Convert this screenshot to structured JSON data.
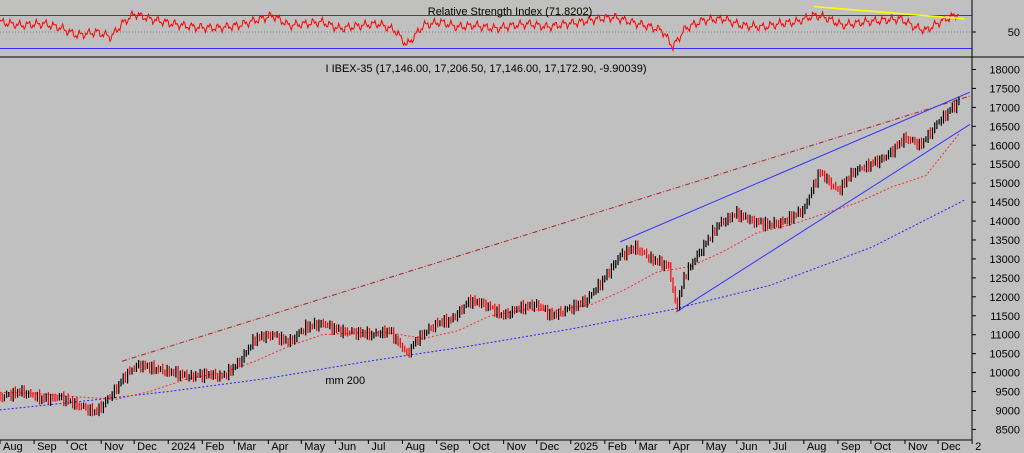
{
  "colors": {
    "background": "#c0c0c0",
    "price_up": "#000000",
    "price_down": "#ff0000",
    "ma_short": "#ff2a2a",
    "ma_200": "#2020ff",
    "trendline": "#3030ff",
    "channel_upper": "#b02020",
    "rsi_line": "#ff0000",
    "rsi_level": "#3030ff",
    "rsi_divergence": "#ffff00"
  },
  "chart_data": [
    {
      "type": "line",
      "title": "Relative Strength Index (71.8202)",
      "ylabel": "",
      "ytick_labels": [
        "50"
      ],
      "levels": [
        70,
        30
      ],
      "series": [
        {
          "name": "Relative Strength Index",
          "x": [
            "2023-08-01",
            "2023-08-20",
            "2023-09-10",
            "2023-09-25",
            "2023-10-10",
            "2023-10-28",
            "2023-11-10",
            "2023-11-20",
            "2023-12-01",
            "2023-12-15",
            "2024-01-05",
            "2024-01-25",
            "2024-02-15",
            "2024-03-05",
            "2024-03-20",
            "2024-04-05",
            "2024-04-20",
            "2024-05-05",
            "2024-05-20",
            "2024-06-05",
            "2024-06-25",
            "2024-07-10",
            "2024-07-25",
            "2024-08-05",
            "2024-08-20",
            "2024-09-05",
            "2024-09-20",
            "2024-10-05",
            "2024-10-25",
            "2024-11-10",
            "2024-11-25",
            "2024-12-10",
            "2024-12-28",
            "2025-01-10",
            "2025-01-25",
            "2025-02-10",
            "2025-02-25",
            "2025-03-10",
            "2025-03-25",
            "2025-04-04",
            "2025-04-15",
            "2025-05-01",
            "2025-05-20",
            "2025-06-05",
            "2025-06-25",
            "2025-07-10",
            "2025-07-25",
            "2025-08-10",
            "2025-08-20",
            "2025-09-05",
            "2025-09-25",
            "2025-10-10",
            "2025-10-28",
            "2025-11-10",
            "2025-11-20",
            "2025-12-05",
            "2025-12-20"
          ],
          "values": [
            62,
            58,
            60,
            55,
            46,
            50,
            44,
            60,
            72,
            66,
            60,
            56,
            55,
            58,
            64,
            70,
            58,
            60,
            62,
            54,
            58,
            60,
            52,
            34,
            58,
            62,
            56,
            58,
            54,
            58,
            60,
            56,
            60,
            62,
            66,
            68,
            62,
            58,
            52,
            32,
            54,
            64,
            66,
            58,
            56,
            60,
            62,
            70,
            68,
            58,
            62,
            64,
            66,
            56,
            52,
            64,
            72
          ]
        },
        {
          "name": "RSI divergence",
          "x": [
            "2025-08-10",
            "2025-12-25"
          ],
          "values": [
            71,
            66
          ]
        }
      ]
    },
    {
      "type": "line",
      "title": "I IBEX-35 (17,146.00, 17,206.50, 17,146.00, 17,172.90, -9.90039)",
      "xlabel": "",
      "ylabel": "",
      "ylim": [
        8300,
        18200
      ],
      "yticks": [
        8500,
        9000,
        9500,
        10000,
        10500,
        11000,
        11500,
        12000,
        12500,
        13000,
        13500,
        14000,
        14500,
        15000,
        15500,
        16000,
        16500,
        17000,
        17500,
        18000
      ],
      "xtick_labels": [
        "Aug",
        "Sep",
        "Oct",
        "Nov",
        "Dec",
        "2024",
        "Feb",
        "Mar",
        "Apr",
        "May",
        "Jun",
        "Jul",
        "Aug",
        "Sep",
        "Oct",
        "Nov",
        "Dec",
        "2025",
        "Feb",
        "Mar",
        "Apr",
        "May",
        "Jun",
        "Jul",
        "Aug",
        "Sep",
        "Oct",
        "Nov",
        "Dec",
        "2"
      ],
      "xtick_dates": [
        "2023-08-01",
        "2023-09-01",
        "2023-10-01",
        "2023-11-01",
        "2023-12-01",
        "2024-01-01",
        "2024-02-01",
        "2024-03-01",
        "2024-04-01",
        "2024-05-01",
        "2024-06-01",
        "2024-07-01",
        "2024-08-01",
        "2024-09-01",
        "2024-10-01",
        "2024-11-01",
        "2024-12-01",
        "2025-01-01",
        "2025-02-01",
        "2025-03-01",
        "2025-04-01",
        "2025-05-01",
        "2025-06-01",
        "2025-07-01",
        "2025-08-01",
        "2025-09-01",
        "2025-10-01",
        "2025-11-01",
        "2025-12-01",
        "2026-01-01"
      ],
      "annotations": [
        {
          "text": "mm 200",
          "x": "2024-06-01",
          "y": 9700
        }
      ],
      "series": [
        {
          "name": "IBEX-35",
          "x": [
            "2023-07-10",
            "2023-08-01",
            "2023-08-20",
            "2023-09-10",
            "2023-09-25",
            "2023-10-10",
            "2023-10-27",
            "2023-11-10",
            "2023-11-25",
            "2023-12-05",
            "2023-12-20",
            "2024-01-05",
            "2024-01-20",
            "2024-02-05",
            "2024-02-20",
            "2024-03-05",
            "2024-03-20",
            "2024-04-05",
            "2024-04-20",
            "2024-05-05",
            "2024-05-20",
            "2024-06-05",
            "2024-06-20",
            "2024-07-05",
            "2024-07-20",
            "2024-08-05",
            "2024-08-15",
            "2024-09-01",
            "2024-09-15",
            "2024-10-01",
            "2024-10-15",
            "2024-11-01",
            "2024-11-15",
            "2024-12-01",
            "2024-12-15",
            "2025-01-01",
            "2025-01-15",
            "2025-02-01",
            "2025-02-15",
            "2025-03-01",
            "2025-03-15",
            "2025-03-31",
            "2025-04-07",
            "2025-04-15",
            "2025-05-01",
            "2025-05-15",
            "2025-06-01",
            "2025-06-15",
            "2025-07-01",
            "2025-07-15",
            "2025-08-01",
            "2025-08-15",
            "2025-09-01",
            "2025-09-15",
            "2025-10-01",
            "2025-10-15",
            "2025-11-01",
            "2025-11-15",
            "2025-12-01",
            "2025-12-20"
          ],
          "values": [
            9400,
            9350,
            9500,
            9300,
            9350,
            9150,
            8950,
            9400,
            10000,
            10200,
            10100,
            10000,
            9900,
            9950,
            9900,
            10250,
            10900,
            11000,
            10800,
            11200,
            11300,
            11100,
            11050,
            11000,
            11100,
            10500,
            10900,
            11300,
            11400,
            11900,
            11800,
            11500,
            11700,
            11800,
            11500,
            11700,
            11900,
            12500,
            13100,
            13300,
            13000,
            12800,
            11700,
            12600,
            13300,
            13900,
            14200,
            14000,
            13900,
            14000,
            14300,
            15300,
            14800,
            15300,
            15500,
            15700,
            16200,
            16000,
            16600,
            17170
          ]
        },
        {
          "name": "moving average (short)",
          "x": [
            "2023-07-10",
            "2023-09-01",
            "2023-10-15",
            "2023-11-15",
            "2023-12-15",
            "2024-01-20",
            "2024-02-20",
            "2024-03-20",
            "2024-04-20",
            "2024-05-20",
            "2024-06-20",
            "2024-07-20",
            "2024-08-20",
            "2024-09-20",
            "2024-10-20",
            "2024-11-20",
            "2024-12-20",
            "2025-01-20",
            "2025-02-20",
            "2025-03-20",
            "2025-04-20",
            "2025-05-20",
            "2025-06-20",
            "2025-07-20",
            "2025-08-20",
            "2025-09-20",
            "2025-10-20",
            "2025-11-20",
            "2025-12-20"
          ],
          "values": [
            9500,
            9450,
            9350,
            9300,
            9500,
            9850,
            10000,
            10300,
            10700,
            11000,
            11050,
            11050,
            10900,
            11100,
            11500,
            11650,
            11650,
            11800,
            12200,
            12650,
            12800,
            13200,
            13700,
            13900,
            14200,
            14500,
            14900,
            15200,
            16300
          ]
        },
        {
          "name": "mm 200",
          "x": [
            "2023-07-10",
            "2023-10-01",
            "2024-01-01",
            "2024-04-01",
            "2024-07-01",
            "2024-10-01",
            "2025-01-01",
            "2025-04-01",
            "2025-07-01",
            "2025-10-01",
            "2025-12-25"
          ],
          "values": [
            8950,
            9200,
            9500,
            9850,
            10300,
            10700,
            11150,
            11650,
            12300,
            13300,
            14550
          ]
        },
        {
          "name": "channel upper",
          "x": [
            "2023-11-20",
            "2025-12-30"
          ],
          "values": [
            10300,
            17300
          ]
        },
        {
          "name": "trendline upper",
          "x": [
            "2025-02-15",
            "2025-12-30"
          ],
          "values": [
            13450,
            17400
          ]
        },
        {
          "name": "trendline lower",
          "x": [
            "2025-04-07",
            "2025-12-30"
          ],
          "values": [
            11600,
            16550
          ]
        }
      ]
    }
  ]
}
